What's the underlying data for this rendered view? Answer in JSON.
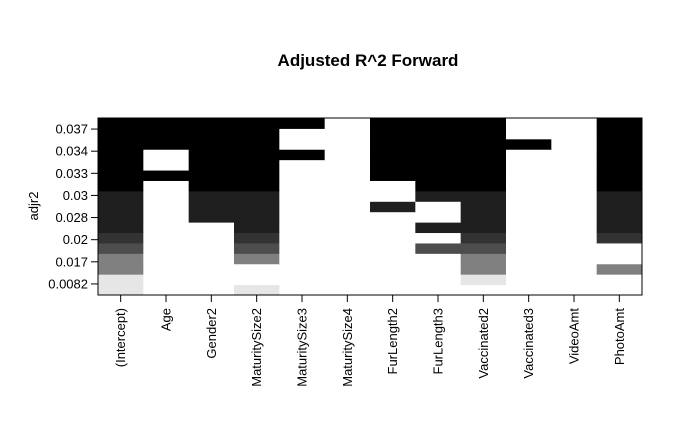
{
  "chart_data": {
    "type": "heatmap",
    "title": "Adjusted R^2 Forward",
    "xlabel": "",
    "ylabel": "adjr2",
    "categories": [
      "(Intercept)",
      "Age",
      "Gender2",
      "MaturitySize2",
      "MaturitySize3",
      "MaturitySize4",
      "FurLength2",
      "FurLength3",
      "Vaccinated2",
      "Vaccinated3",
      "VideoAmt",
      "PhotoAmt"
    ],
    "y_ticks": [
      "0.0082",
      "0.017",
      "0.02",
      "0.028",
      "0.03",
      "0.033",
      "0.034",
      "0.037"
    ],
    "rows": [
      {
        "adjr2": 0.0082,
        "level": 0.1,
        "included": [
          1,
          0,
          0,
          1,
          0,
          0,
          0,
          0,
          0,
          0,
          0,
          0
        ]
      },
      {
        "adjr2": 0.013,
        "level": 0.1,
        "included": [
          1,
          0,
          0,
          0,
          0,
          0,
          0,
          0,
          1,
          0,
          0,
          0
        ]
      },
      {
        "adjr2": 0.017,
        "level": 0.5,
        "included": [
          1,
          0,
          0,
          0,
          0,
          0,
          0,
          0,
          1,
          0,
          0,
          1
        ]
      },
      {
        "adjr2": 0.018,
        "level": 0.5,
        "included": [
          1,
          0,
          0,
          1,
          0,
          0,
          0,
          0,
          1,
          0,
          0,
          0
        ]
      },
      {
        "adjr2": 0.02,
        "level": 0.7,
        "included": [
          1,
          0,
          0,
          1,
          0,
          0,
          0,
          1,
          1,
          0,
          0,
          0
        ]
      },
      {
        "adjr2": 0.024,
        "level": 0.8,
        "included": [
          1,
          0,
          0,
          1,
          0,
          0,
          0,
          0,
          1,
          0,
          0,
          1
        ]
      },
      {
        "adjr2": 0.028,
        "level": 0.88,
        "included": [
          1,
          0,
          0,
          1,
          0,
          0,
          0,
          1,
          1,
          0,
          0,
          1
        ]
      },
      {
        "adjr2": 0.029,
        "level": 0.88,
        "included": [
          1,
          0,
          1,
          1,
          0,
          0,
          0,
          0,
          1,
          0,
          0,
          1
        ]
      },
      {
        "adjr2": 0.03,
        "level": 0.88,
        "included": [
          1,
          0,
          1,
          1,
          0,
          0,
          1,
          0,
          1,
          0,
          0,
          1
        ]
      },
      {
        "adjr2": 0.031,
        "level": 0.88,
        "included": [
          1,
          0,
          1,
          1,
          0,
          0,
          0,
          1,
          1,
          0,
          0,
          1
        ]
      },
      {
        "adjr2": 0.033,
        "level": 1.0,
        "included": [
          1,
          0,
          1,
          1,
          0,
          0,
          0,
          1,
          1,
          0,
          0,
          1
        ]
      },
      {
        "adjr2": 0.0335,
        "level": 1.0,
        "included": [
          1,
          1,
          1,
          1,
          0,
          0,
          1,
          1,
          1,
          0,
          0,
          1
        ]
      },
      {
        "adjr2": 0.034,
        "level": 1.0,
        "included": [
          1,
          0,
          1,
          1,
          0,
          0,
          1,
          1,
          1,
          0,
          0,
          1
        ]
      },
      {
        "adjr2": 0.0345,
        "level": 1.0,
        "included": [
          1,
          0,
          1,
          1,
          1,
          0,
          1,
          1,
          1,
          0,
          0,
          1
        ]
      },
      {
        "adjr2": 0.0355,
        "level": 1.0,
        "included": [
          1,
          1,
          1,
          1,
          0,
          0,
          1,
          1,
          1,
          1,
          0,
          1
        ]
      },
      {
        "adjr2": 0.037,
        "level": 1.0,
        "included": [
          1,
          1,
          1,
          1,
          0,
          0,
          1,
          1,
          1,
          0,
          0,
          1
        ]
      },
      {
        "adjr2": 0.0372,
        "level": 1.0,
        "included": [
          1,
          1,
          1,
          1,
          1,
          0,
          1,
          1,
          1,
          0,
          0,
          1
        ]
      }
    ],
    "colors": {
      "background": "#ffffff",
      "low": "#ffffff",
      "high": "#000000",
      "frame": "#000000"
    },
    "grid": false,
    "legend": "none"
  }
}
